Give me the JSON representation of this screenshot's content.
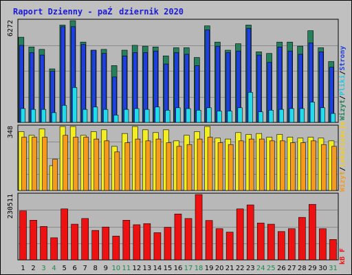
{
  "title": "Raport Dzienny -  paŹdziernik 2020",
  "colors": {
    "background": "#c0c0c0",
    "plot_background": "#b8b8b8",
    "odwiedziny": "#26805c",
    "strony": "#1f3fde",
    "pliki": "#22dcee",
    "lokalizacje": "#f2ee22",
    "wizyty": "#f59a1c",
    "kb": "#ee1111",
    "weekend_tick": "#1a8a4a",
    "tick": "#000000"
  },
  "labels": {
    "panel1": [
      {
        "text": "Wizyt",
        "color": "#26805c"
      },
      {
        "text": "/",
        "color": "#000000"
      },
      {
        "text": "Pliki",
        "color": "#22c8e0"
      },
      {
        "text": "/",
        "color": "#000000"
      },
      {
        "text": "Strony",
        "color": "#1f3fde"
      }
    ],
    "panel2": [
      {
        "text": "Wizyt",
        "color": "#f59a1c"
      },
      {
        "text": "/",
        "color": "#000000"
      },
      {
        "text": "Lokalizacje",
        "color": "#f2cc22"
      }
    ],
    "panel3": [
      {
        "text": "kB F",
        "color": "#ee1111"
      }
    ]
  },
  "chart_data": [
    {
      "type": "bar",
      "panel": "top",
      "ymax_label": "6272",
      "x": [
        "1",
        "2",
        "3",
        "4",
        "5",
        "6",
        "7",
        "8",
        "9",
        "10",
        "11",
        "12",
        "13",
        "14",
        "15",
        "16",
        "17",
        "18",
        "19",
        "20",
        "21",
        "22",
        "23",
        "24",
        "25",
        "26",
        "27",
        "28",
        "29",
        "30",
        "31"
      ],
      "weekend_days": [
        "3",
        "4",
        "10",
        "11",
        "17",
        "18",
        "24",
        "25",
        "31"
      ],
      "series": [
        {
          "key": "odwiedziny",
          "values": [
            5250,
            4650,
            4500,
            3300,
            6000,
            6272,
            4950,
            4450,
            4500,
            3500,
            4450,
            4750,
            4700,
            4650,
            4100,
            4600,
            4600,
            4000,
            5950,
            4950,
            4450,
            4850,
            6000,
            4350,
            4250,
            4950,
            4950,
            4700,
            5650,
            4600,
            3750
          ]
        },
        {
          "key": "strony",
          "values": [
            4750,
            4300,
            4150,
            3150,
            5900,
            5900,
            4800,
            4450,
            4250,
            2800,
            4100,
            4300,
            4300,
            4400,
            3600,
            4300,
            4200,
            3500,
            5700,
            4700,
            4300,
            4400,
            5800,
            4150,
            3700,
            4650,
            4400,
            4200,
            4900,
            4350,
            3400
          ]
        },
        {
          "key": "pliki",
          "values": [
            850,
            800,
            800,
            600,
            1050,
            2150,
            800,
            950,
            800,
            450,
            800,
            850,
            800,
            950,
            750,
            900,
            850,
            750,
            900,
            700,
            700,
            900,
            1850,
            650,
            750,
            800,
            850,
            850,
            1250,
            900,
            550
          ]
        }
      ]
    },
    {
      "type": "bar",
      "panel": "middle",
      "ymax_label": "348",
      "series": [
        {
          "key": "lokalizacje",
          "values": [
            320,
            300,
            335,
            135,
            348,
            348,
            300,
            320,
            330,
            240,
            310,
            348,
            330,
            315,
            330,
            270,
            300,
            320,
            348,
            285,
            280,
            315,
            305,
            310,
            290,
            305,
            290,
            285,
            290,
            285,
            270
          ]
        },
        {
          "key": "wizyty",
          "values": [
            290,
            290,
            290,
            170,
            300,
            290,
            290,
            280,
            270,
            210,
            260,
            280,
            270,
            280,
            260,
            240,
            250,
            280,
            290,
            260,
            250,
            270,
            280,
            280,
            270,
            270,
            260,
            260,
            270,
            250,
            240
          ]
        }
      ]
    },
    {
      "type": "bar",
      "panel": "bottom",
      "ymax_label": "230511",
      "series": [
        {
          "key": "kb",
          "values": [
            173000,
            140000,
            118000,
            78000,
            180000,
            126000,
            146000,
            104000,
            116000,
            84000,
            140000,
            124000,
            128000,
            96000,
            115000,
            162000,
            146000,
            230511,
            139000,
            110000,
            98000,
            180000,
            194000,
            130000,
            126000,
            100000,
            110000,
            150000,
            196000,
            110000,
            72000
          ]
        }
      ]
    }
  ]
}
